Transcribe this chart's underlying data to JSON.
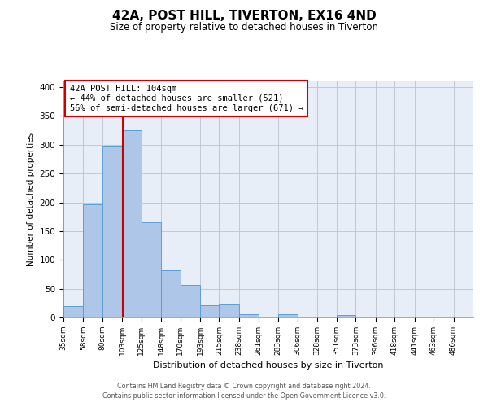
{
  "title": "42A, POST HILL, TIVERTON, EX16 4ND",
  "subtitle": "Size of property relative to detached houses in Tiverton",
  "xlabel": "Distribution of detached houses by size in Tiverton",
  "ylabel": "Number of detached properties",
  "bar_edges": [
    35,
    58,
    80,
    103,
    125,
    148,
    170,
    193,
    215,
    238,
    261,
    283,
    306,
    328,
    351,
    373,
    396,
    418,
    441,
    463,
    486,
    509
  ],
  "bar_heights": [
    20,
    197,
    298,
    325,
    165,
    82,
    57,
    21,
    23,
    6,
    2,
    5,
    2,
    0,
    4,
    2,
    0,
    0,
    2,
    0,
    2
  ],
  "property_value": 104,
  "bar_fill_color": "#aec6e8",
  "bar_edge_color": "#5a9fd4",
  "vline_color": "#cc0000",
  "annotation_line1": "42A POST HILL: 104sqm",
  "annotation_line2": "← 44% of detached houses are smaller (521)",
  "annotation_line3": "56% of semi-detached houses are larger (671) →",
  "annotation_box_edgecolor": "#cc0000",
  "annotation_box_facecolor": "#ffffff",
  "ylim": [
    0,
    410
  ],
  "yticks": [
    0,
    50,
    100,
    150,
    200,
    250,
    300,
    350,
    400
  ],
  "background_color": "#ffffff",
  "plot_bg_color": "#e8eef8",
  "grid_color": "#c0c8d8",
  "tick_labels": [
    "35sqm",
    "58sqm",
    "80sqm",
    "103sqm",
    "125sqm",
    "148sqm",
    "170sqm",
    "193sqm",
    "215sqm",
    "238sqm",
    "261sqm",
    "283sqm",
    "306sqm",
    "328sqm",
    "351sqm",
    "373sqm",
    "396sqm",
    "418sqm",
    "441sqm",
    "463sqm",
    "486sqm"
  ],
  "footer_line1": "Contains HM Land Registry data © Crown copyright and database right 2024.",
  "footer_line2": "Contains public sector information licensed under the Open Government Licence v3.0."
}
